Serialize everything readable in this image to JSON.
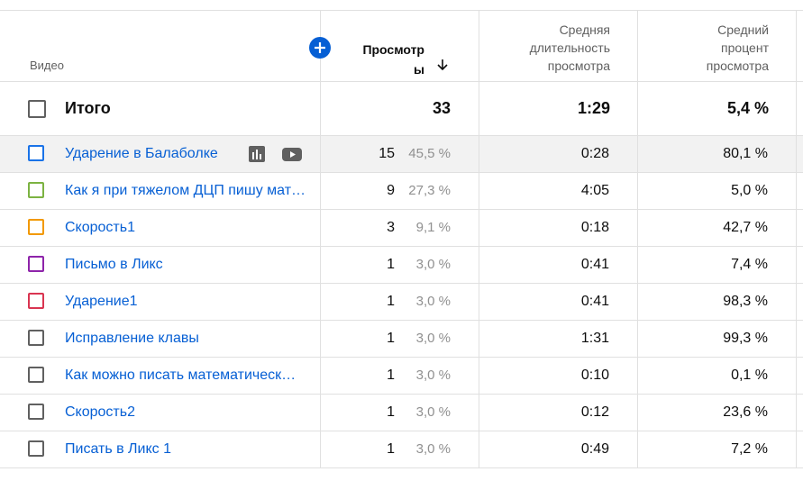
{
  "header": {
    "video_col": "Видео",
    "views_col_line1": "Просмотр",
    "views_col_line2": "ы",
    "avg_duration_lines": [
      "Средняя",
      "длительность",
      "просмотра"
    ],
    "avg_percent_lines": [
      "Средний",
      "процент",
      "просмотра"
    ]
  },
  "total": {
    "label": "Итого",
    "views": "33",
    "avg_duration": "1:29",
    "avg_percent": "5,4 %"
  },
  "rows": [
    {
      "title": "Ударение в Балаболке",
      "views": "15",
      "share": "45,5 %",
      "duration": "0:28",
      "percent": "80,1 %",
      "color": "#1a73e8",
      "highlighted": true
    },
    {
      "title": "Как я при тяжелом ДЦП пишу мат…",
      "views": "9",
      "share": "27,3 %",
      "duration": "4:05",
      "percent": "5,0 %",
      "color": "#7cb342",
      "highlighted": false
    },
    {
      "title": "Скорость1",
      "views": "3",
      "share": "9,1 %",
      "duration": "0:18",
      "percent": "42,7 %",
      "color": "#f29900",
      "highlighted": false
    },
    {
      "title": "Письмо в Ликс",
      "views": "1",
      "share": "3,0 %",
      "duration": "0:41",
      "percent": "7,4 %",
      "color": "#8e24aa",
      "highlighted": false
    },
    {
      "title": "Ударение1",
      "views": "1",
      "share": "3,0 %",
      "duration": "0:41",
      "percent": "98,3 %",
      "color": "#d93551",
      "highlighted": false
    },
    {
      "title": "Исправление клавы",
      "views": "1",
      "share": "3,0 %",
      "duration": "1:31",
      "percent": "99,3 %",
      "color": "#606060",
      "highlighted": false
    },
    {
      "title": "Как можно писать математическ…",
      "views": "1",
      "share": "3,0 %",
      "duration": "0:10",
      "percent": "0,1 %",
      "color": "#606060",
      "highlighted": false
    },
    {
      "title": "Скорость2",
      "views": "1",
      "share": "3,0 %",
      "duration": "0:12",
      "percent": "23,6 %",
      "color": "#606060",
      "highlighted": false
    },
    {
      "title": "Писать в Ликс 1",
      "views": "1",
      "share": "3,0 %",
      "duration": "0:49",
      "percent": "7,2 %",
      "color": "#606060",
      "highlighted": false
    }
  ],
  "icons": {
    "analytics": "bar-chart-icon",
    "youtube": "youtube-icon",
    "add": "plus-icon",
    "sort": "arrow-down-icon"
  },
  "colors": {
    "link": "#065fd4",
    "accent": "#065fd4",
    "muted": "#606060",
    "divider": "#e0e0e0"
  }
}
